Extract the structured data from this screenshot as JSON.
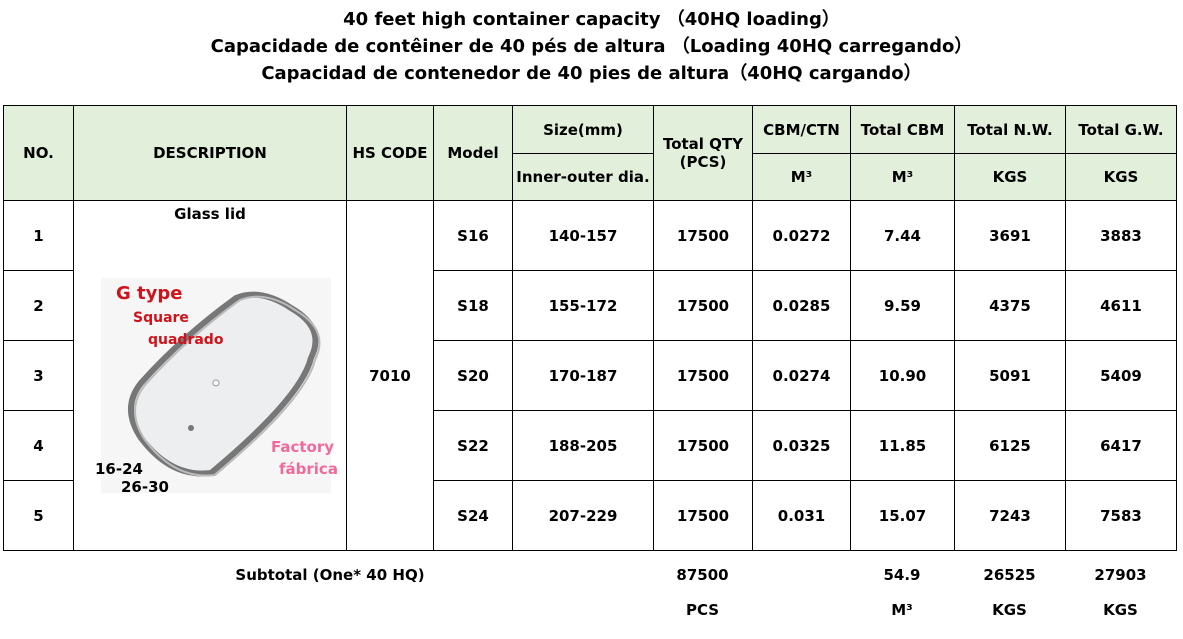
{
  "titles": [
    "40 feet high container capacity （40HQ loading）",
    "Capacidade de contêiner de 40 pés de altura （Loading 40HQ carregando）",
    "Capacidad de contenedor de 40 pies de altura（40HQ cargando）"
  ],
  "header": {
    "no": "NO.",
    "description": "DESCRIPTION",
    "hs_code": "HS CODE",
    "model": "Model",
    "size": "Size(mm)",
    "size_sub": "Inner-outer dia.",
    "total_qty": "Total QTY (PCS)",
    "cbm_ctn": "CBM/CTN",
    "total_cbm": "Total CBM",
    "total_nw": "Total N.W.",
    "total_gw": "Total G.W.",
    "unit_m3": "M³",
    "unit_kgs": "KGS"
  },
  "product": {
    "name": "Glass lid",
    "hs_code": "7010",
    "image_labels": {
      "type": "G type",
      "shape_en": "Square",
      "shape_pt": "quadrado",
      "factory_en": "Factory",
      "factory_pt": "fábrica",
      "range1": "16-24",
      "range2": "26-30"
    }
  },
  "rows": [
    {
      "no": "1",
      "model": "S16",
      "size": "140-157",
      "qty": "17500",
      "cbm_ctn": "0.0272",
      "total_cbm": "7.44",
      "nw": "3691",
      "gw": "3883"
    },
    {
      "no": "2",
      "model": "S18",
      "size": "155-172",
      "qty": "17500",
      "cbm_ctn": "0.0285",
      "total_cbm": "9.59",
      "nw": "4375",
      "gw": "4611"
    },
    {
      "no": "3",
      "model": "S20",
      "size": "170-187",
      "qty": "17500",
      "cbm_ctn": "0.0274",
      "total_cbm": "10.90",
      "nw": "5091",
      "gw": "5409"
    },
    {
      "no": "4",
      "model": "S22",
      "size": "188-205",
      "qty": "17500",
      "cbm_ctn": "0.0325",
      "total_cbm": "11.85",
      "nw": "6125",
      "gw": "6417"
    },
    {
      "no": "5",
      "model": "S24",
      "size": "207-229",
      "qty": "17500",
      "cbm_ctn": "0.031",
      "total_cbm": "15.07",
      "nw": "7243",
      "gw": "7583"
    }
  ],
  "subtotal": {
    "label": "Subtotal (One* 40 HQ)",
    "qty": "87500",
    "total_cbm": "54.9",
    "nw": "26525",
    "gw": "27903",
    "qty_unit": "PCS",
    "cbm_unit": "M³",
    "nw_unit": "KGS",
    "gw_unit": "KGS"
  },
  "colors": {
    "header_bg": "#e2efda",
    "label_red": "#d0121b",
    "label_pink": "#f06a9a"
  }
}
